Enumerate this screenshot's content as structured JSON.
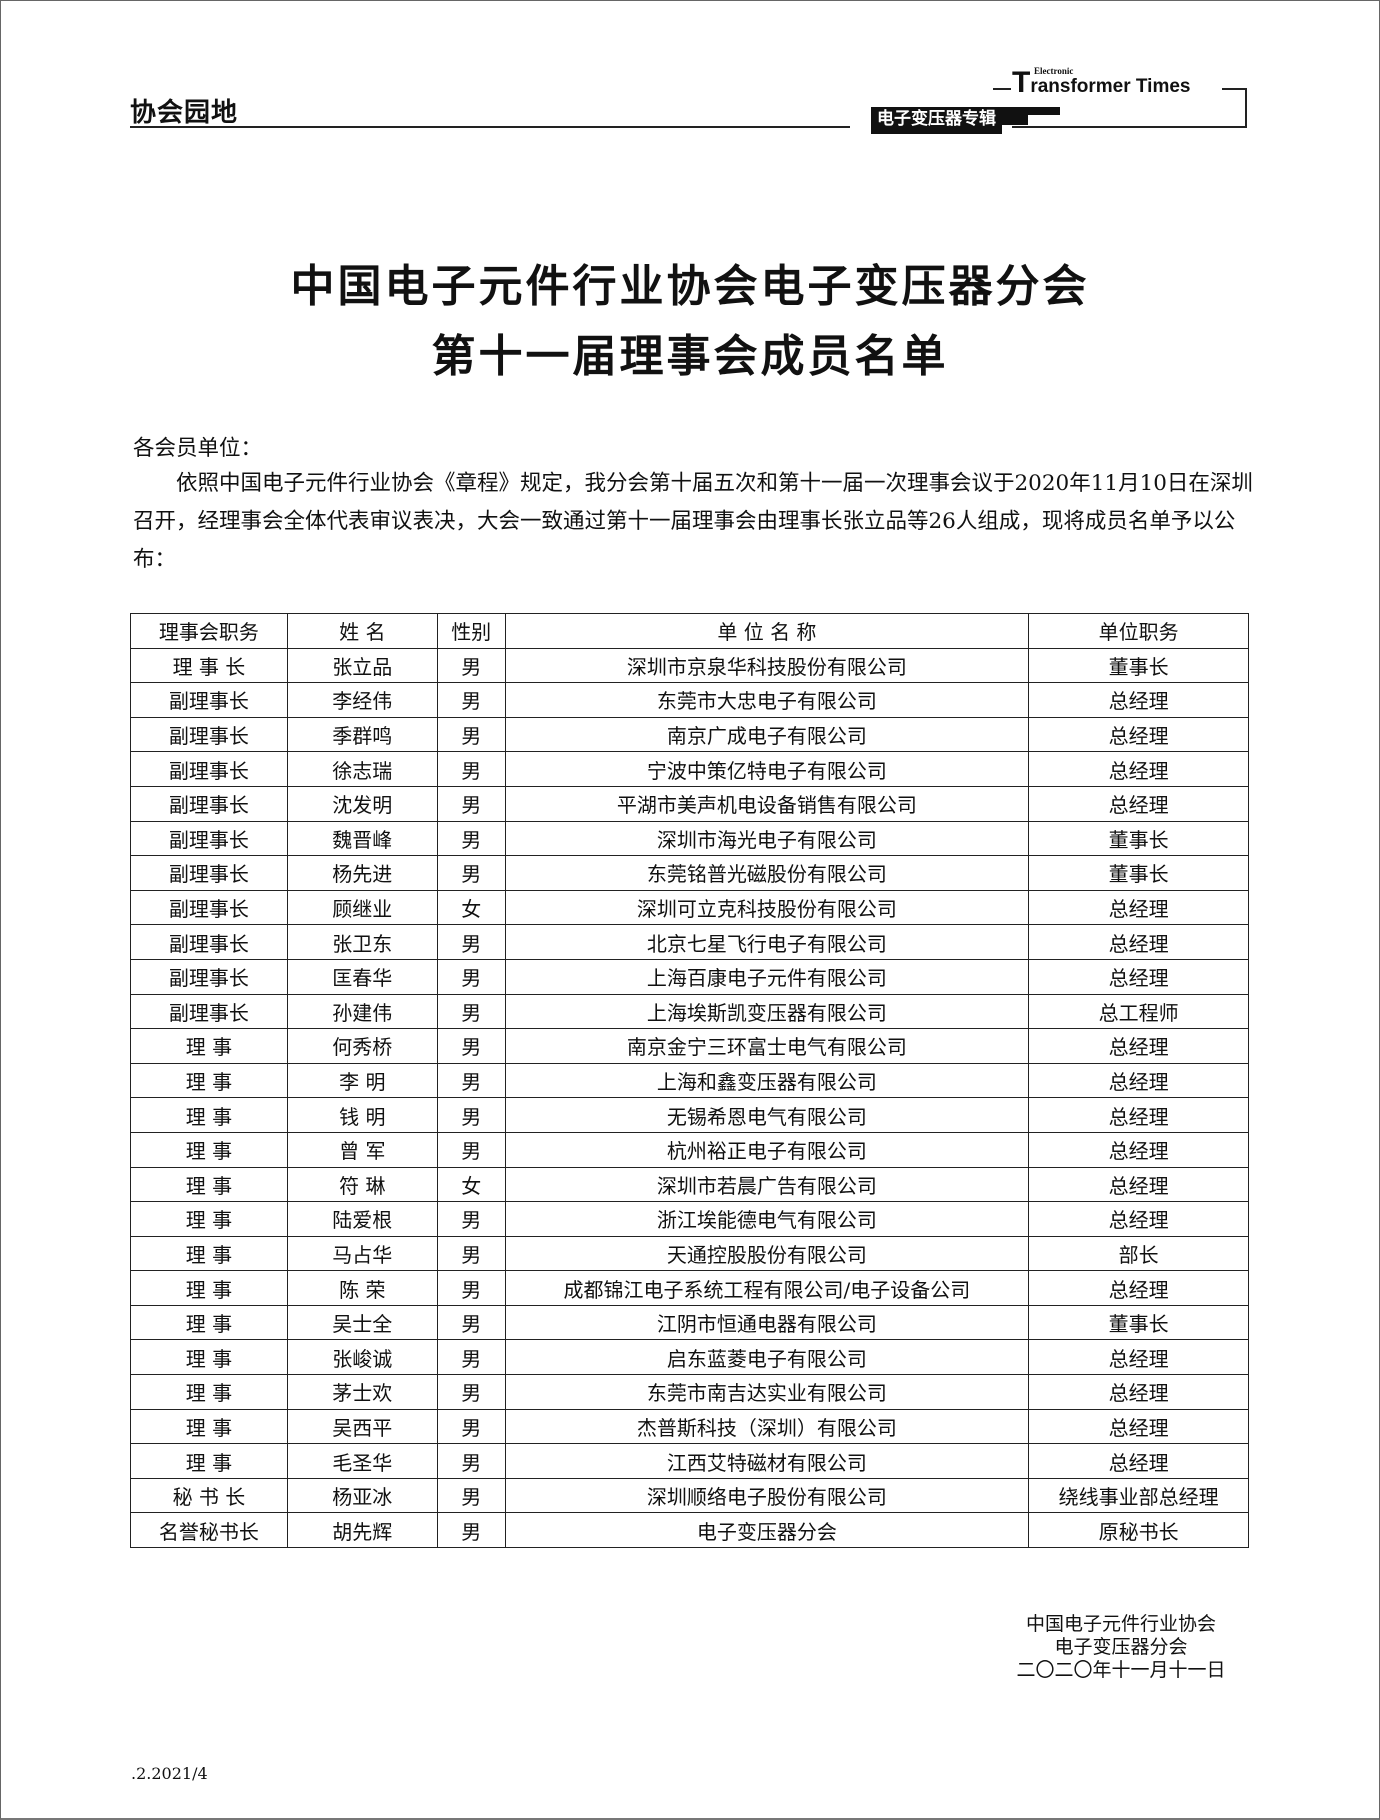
{
  "header": {
    "section": "协会园地",
    "brand_small": "Electronic",
    "brand_big_letter": "T",
    "brand_rest": "ransformer Times",
    "brand_cn": "电子变压器专辑"
  },
  "title": {
    "line1": "中国电子元件行业协会电子变压器分会",
    "line2": "第十一届理事会成员名单"
  },
  "salutation": "各会员单位：",
  "paragraph": "依照中国电子元件行业协会《章程》规定，我分会第十届五次和第十一届一次理事会议于2020年11月10日在深圳召开，经理事会全体代表审议表决，大会一致通过第十一届理事会由理事长张立品等26人组成，现将成员名单予以公布：",
  "table": {
    "headers": [
      "理事会职务",
      "姓 名",
      "性别",
      "单 位 名 称",
      "单位职务"
    ],
    "rows": [
      [
        "理 事 长",
        "张立品",
        "男",
        "深圳市京泉华科技股份有限公司",
        "董事长"
      ],
      [
        "副理事长",
        "李经伟",
        "男",
        "东莞市大忠电子有限公司",
        "总经理"
      ],
      [
        "副理事长",
        "季群鸣",
        "男",
        "南京广成电子有限公司",
        "总经理"
      ],
      [
        "副理事长",
        "徐志瑞",
        "男",
        "宁波中策亿特电子有限公司",
        "总经理"
      ],
      [
        "副理事长",
        "沈发明",
        "男",
        "平湖市美声机电设备销售有限公司",
        "总经理"
      ],
      [
        "副理事长",
        "魏晋峰",
        "男",
        "深圳市海光电子有限公司",
        "董事长"
      ],
      [
        "副理事长",
        "杨先进",
        "男",
        "东莞铭普光磁股份有限公司",
        "董事长"
      ],
      [
        "副理事长",
        "顾继业",
        "女",
        "深圳可立克科技股份有限公司",
        "总经理"
      ],
      [
        "副理事长",
        "张卫东",
        "男",
        "北京七星飞行电子有限公司",
        "总经理"
      ],
      [
        "副理事长",
        "匡春华",
        "男",
        "上海百康电子元件有限公司",
        "总经理"
      ],
      [
        "副理事长",
        "孙建伟",
        "男",
        "上海埃斯凯变压器有限公司",
        "总工程师"
      ],
      [
        "理 事",
        "何秀桥",
        "男",
        "南京金宁三环富士电气有限公司",
        "总经理"
      ],
      [
        "理 事",
        "李 明",
        "男",
        "上海和鑫变压器有限公司",
        "总经理"
      ],
      [
        "理 事",
        "钱 明",
        "男",
        "无锡希恩电气有限公司",
        "总经理"
      ],
      [
        "理 事",
        "曾 军",
        "男",
        "杭州裕正电子有限公司",
        "总经理"
      ],
      [
        "理 事",
        "符 琳",
        "女",
        "深圳市若晨广告有限公司",
        "总经理"
      ],
      [
        "理 事",
        "陆爱根",
        "男",
        "浙江埃能德电气有限公司",
        "总经理"
      ],
      [
        "理 事",
        "马占华",
        "男",
        "天通控股股份有限公司",
        "部长"
      ],
      [
        "理 事",
        "陈 荣",
        "男",
        "成都锦江电子系统工程有限公司/电子设备公司",
        "总经理"
      ],
      [
        "理 事",
        "吴士全",
        "男",
        "江阴市恒通电器有限公司",
        "董事长"
      ],
      [
        "理 事",
        "张峻诚",
        "男",
        "启东蓝菱电子有限公司",
        "总经理"
      ],
      [
        "理 事",
        "茅士欢",
        "男",
        "东莞市南吉达实业有限公司",
        "总经理"
      ],
      [
        "理 事",
        "吴西平",
        "男",
        "杰普斯科技（深圳）有限公司",
        "总经理"
      ],
      [
        "理 事",
        "毛圣华",
        "男",
        "江西艾特磁材有限公司",
        "总经理"
      ],
      [
        "秘 书 长",
        "杨亚冰",
        "男",
        "深圳顺络电子股份有限公司",
        "绕线事业部总经理"
      ],
      [
        "名誉秘书长",
        "胡先辉",
        "男",
        "电子变压器分会",
        "原秘书长"
      ]
    ]
  },
  "signature": {
    "line1": "中国电子元件行业协会",
    "line2": "电子变压器分会",
    "line3": "二〇二〇年十一月十一日"
  },
  "footer": ".2.2021/4"
}
